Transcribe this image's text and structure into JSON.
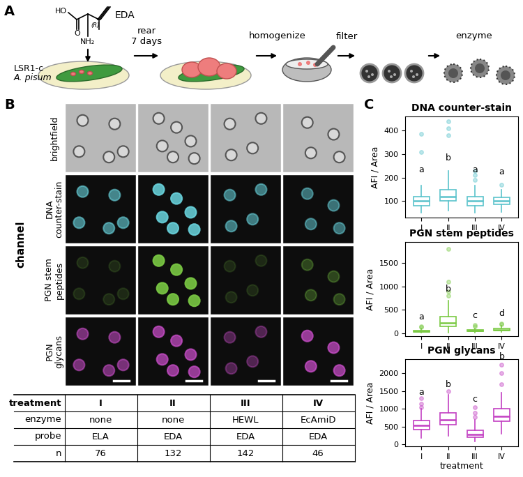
{
  "panel_labels": [
    "A",
    "B",
    "C"
  ],
  "panel_a": {
    "reagent": "EDA",
    "structure_atoms": [
      "HO",
      "O",
      "NH₂"
    ],
    "stereo": "(R)",
    "strain": "LSR1-c",
    "organism": "A. pisum",
    "steps": [
      "rear\n7 days",
      "homogenize",
      "filter",
      "enzyme"
    ]
  },
  "panel_b": {
    "axis_label": "channel",
    "channels": [
      "brightfield",
      "DNA\ncounter-stain",
      "PGN stem\npeptides",
      "PGN\nglycans"
    ],
    "table": {
      "rows": [
        [
          "treatment",
          "I",
          "II",
          "III",
          "IV"
        ],
        [
          "enzyme",
          "none",
          "none",
          "HEWL",
          "EcAmiD"
        ],
        [
          "probe",
          "ELA",
          "EDA",
          "EDA",
          "EDA"
        ],
        [
          "n",
          76,
          132,
          142,
          46
        ]
      ]
    }
  },
  "chart_data": [
    {
      "type": "box",
      "title": "DNA counter-stain",
      "y_label": "AFI / Area",
      "categories": [
        "I",
        "II",
        "III",
        "IV"
      ],
      "color": "#5bc3cc",
      "ylim": [
        30,
        460
      ],
      "yticks": [
        100,
        200,
        300,
        400
      ],
      "boxes": [
        {
          "whislo": 50,
          "q1": 80,
          "med": 100,
          "q3": 120,
          "whishi": 165,
          "fliers": [
            310,
            385
          ]
        },
        {
          "whislo": 60,
          "q1": 100,
          "med": 120,
          "q3": 150,
          "whishi": 230,
          "fliers": [
            380,
            410,
            440
          ]
        },
        {
          "whislo": 50,
          "q1": 80,
          "med": 100,
          "q3": 120,
          "whishi": 165,
          "fliers": [
            190,
            210,
            230
          ]
        },
        {
          "whislo": 55,
          "q1": 85,
          "med": 100,
          "q3": 115,
          "whishi": 150,
          "fliers": [
            170
          ]
        }
      ],
      "group_labels": [
        {
          "text": "a",
          "y": 215
        },
        {
          "text": "b",
          "y": 265
        },
        {
          "text": "a",
          "y": 215
        },
        {
          "text": "a",
          "y": 205
        }
      ]
    },
    {
      "type": "box",
      "title": "PGN stem peptides",
      "y_label": "AFI / Area",
      "categories": [
        "I",
        "II",
        "III",
        "IV"
      ],
      "color": "#7ac943",
      "ylim": [
        -60,
        1950
      ],
      "yticks": [
        0,
        500,
        1000,
        1500
      ],
      "boxes": [
        {
          "whislo": 10,
          "q1": 30,
          "med": 45,
          "q3": 65,
          "whishi": 100,
          "fliers": [
            130,
            150
          ]
        },
        {
          "whislo": 20,
          "q1": 150,
          "med": 230,
          "q3": 360,
          "whishi": 700,
          "fliers": [
            800,
            900,
            1100,
            1800
          ]
        },
        {
          "whislo": 20,
          "q1": 40,
          "med": 55,
          "q3": 70,
          "whishi": 110,
          "fliers": [
            150,
            180
          ]
        },
        {
          "whislo": 30,
          "q1": 60,
          "med": 80,
          "q3": 110,
          "whishi": 170,
          "fliers": [
            190,
            210
          ]
        }
      ],
      "group_labels": [
        {
          "text": "a",
          "y": 250
        },
        {
          "text": "b",
          "y": 850
        },
        {
          "text": "c",
          "y": 280
        },
        {
          "text": "d",
          "y": 330
        }
      ]
    },
    {
      "type": "box",
      "title": "PGN glycans",
      "y_label": "AFI / Area",
      "x_label": "treatment",
      "categories": [
        "I",
        "II",
        "III",
        "IV"
      ],
      "color": "#c23fc2",
      "ylim": [
        -50,
        2400
      ],
      "yticks": [
        0,
        500,
        1000,
        1500,
        2000
      ],
      "boxes": [
        {
          "whislo": 180,
          "q1": 420,
          "med": 530,
          "q3": 680,
          "whishi": 1000,
          "fliers": [
            1050,
            1150,
            1300
          ]
        },
        {
          "whislo": 250,
          "q1": 550,
          "med": 700,
          "q3": 900,
          "whishi": 1400,
          "fliers": [
            1500
          ]
        },
        {
          "whislo": 80,
          "q1": 200,
          "med": 290,
          "q3": 400,
          "whishi": 700,
          "fliers": [
            780,
            900,
            1050
          ]
        },
        {
          "whislo": 300,
          "q1": 650,
          "med": 800,
          "q3": 1000,
          "whishi": 1450,
          "fliers": [
            1700,
            2000,
            2250
          ]
        }
      ],
      "group_labels": [
        {
          "text": "a",
          "y": 1350
        },
        {
          "text": "b",
          "y": 1550
        },
        {
          "text": "c",
          "y": 1150
        },
        {
          "text": "b",
          "y": 2350
        }
      ]
    }
  ]
}
